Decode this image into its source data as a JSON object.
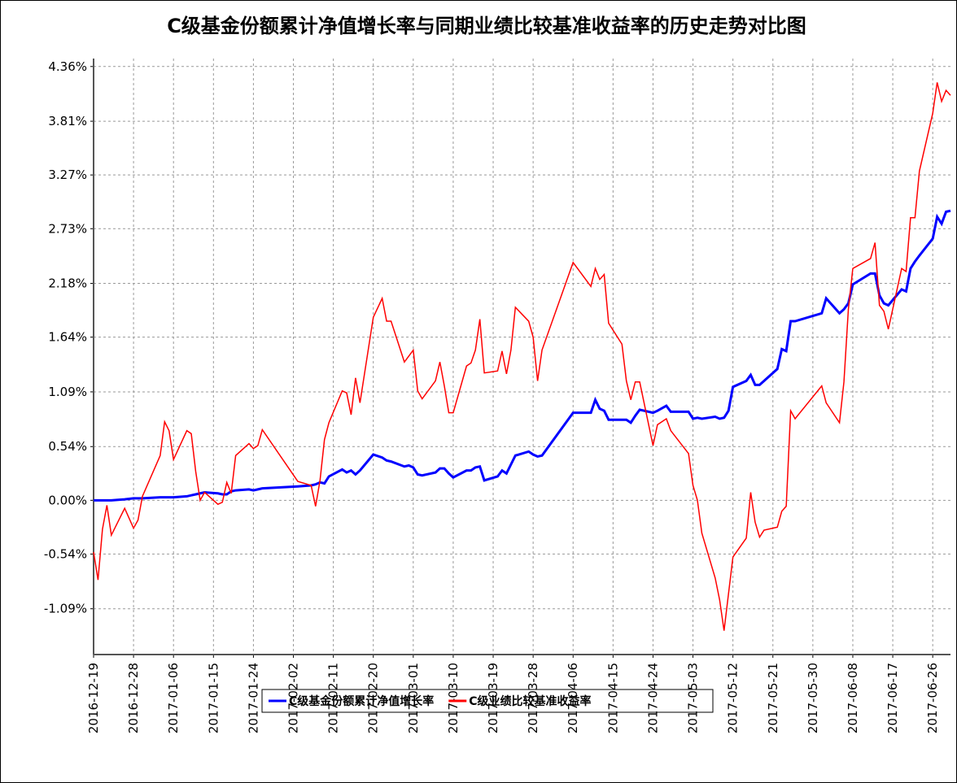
{
  "chart_data": {
    "type": "line",
    "title": "C级基金份额累计净值增长率与同期业绩比较基准收益率的历史走势对比图",
    "x": [
      "2016-12-19",
      "2016-12-20",
      "2016-12-21",
      "2016-12-22",
      "2016-12-23",
      "2016-12-26",
      "2016-12-28",
      "2016-12-29",
      "2016-12-30",
      "2017-01-03",
      "2017-01-04",
      "2017-01-05",
      "2017-01-06",
      "2017-01-09",
      "2017-01-10",
      "2017-01-11",
      "2017-01-12",
      "2017-01-13",
      "2017-01-16",
      "2017-01-17",
      "2017-01-18",
      "2017-01-19",
      "2017-01-20",
      "2017-01-23",
      "2017-01-24",
      "2017-01-25",
      "2017-01-26",
      "2017-02-03",
      "2017-02-06",
      "2017-02-07",
      "2017-02-08",
      "2017-02-09",
      "2017-02-10",
      "2017-02-13",
      "2017-02-14",
      "2017-02-15",
      "2017-02-16",
      "2017-02-17",
      "2017-02-20",
      "2017-02-22",
      "2017-02-23",
      "2017-02-24",
      "2017-02-27",
      "2017-02-28",
      "2017-03-01",
      "2017-03-02",
      "2017-03-03",
      "2017-03-06",
      "2017-03-07",
      "2017-03-08",
      "2017-03-09",
      "2017-03-10",
      "2017-03-13",
      "2017-03-14",
      "2017-03-15",
      "2017-03-16",
      "2017-03-17",
      "2017-03-20",
      "2017-03-21",
      "2017-03-22",
      "2017-03-23",
      "2017-03-24",
      "2017-03-27",
      "2017-03-28",
      "2017-03-29",
      "2017-03-30",
      "2017-04-06",
      "2017-04-10",
      "2017-04-11",
      "2017-04-12",
      "2017-04-13",
      "2017-04-14",
      "2017-04-17",
      "2017-04-18",
      "2017-04-19",
      "2017-04-20",
      "2017-04-21",
      "2017-04-24",
      "2017-04-25",
      "2017-04-27",
      "2017-04-28",
      "2017-05-02",
      "2017-05-03",
      "2017-05-04",
      "2017-05-05",
      "2017-05-08",
      "2017-05-09",
      "2017-05-10",
      "2017-05-11",
      "2017-05-12",
      "2017-05-15",
      "2017-05-16",
      "2017-05-17",
      "2017-05-18",
      "2017-05-19",
      "2017-05-22",
      "2017-05-23",
      "2017-05-24",
      "2017-05-25",
      "2017-05-26",
      "2017-06-01",
      "2017-06-02",
      "2017-06-05",
      "2017-06-06",
      "2017-06-07",
      "2017-06-08",
      "2017-06-12",
      "2017-06-13",
      "2017-06-14",
      "2017-06-15",
      "2017-06-16",
      "2017-06-19",
      "2017-06-20",
      "2017-06-21",
      "2017-06-22",
      "2017-06-23",
      "2017-06-26",
      "2017-06-27",
      "2017-06-28",
      "2017-06-29",
      "2017-06-30"
    ],
    "series": [
      {
        "name": "C级基金份额累计净值增长率",
        "color": "#0000ff",
        "width": 3,
        "values": [
          0.0,
          0.0,
          0.0,
          0.0,
          0.0,
          0.01,
          0.02,
          0.02,
          0.02,
          0.03,
          0.03,
          0.03,
          0.03,
          0.04,
          0.05,
          0.06,
          0.07,
          0.08,
          0.07,
          0.06,
          0.06,
          0.09,
          0.1,
          0.11,
          0.1,
          0.11,
          0.12,
          0.14,
          0.15,
          0.16,
          0.18,
          0.17,
          0.24,
          0.31,
          0.28,
          0.3,
          0.26,
          0.3,
          0.46,
          0.43,
          0.4,
          0.39,
          0.34,
          0.35,
          0.33,
          0.26,
          0.25,
          0.28,
          0.32,
          0.32,
          0.27,
          0.23,
          0.3,
          0.3,
          0.33,
          0.34,
          0.2,
          0.24,
          0.3,
          0.27,
          0.36,
          0.45,
          0.49,
          0.46,
          0.44,
          0.45,
          0.88,
          0.88,
          1.01,
          0.92,
          0.9,
          0.81,
          0.81,
          0.81,
          0.78,
          0.85,
          0.91,
          0.88,
          0.9,
          0.95,
          0.89,
          0.89,
          0.82,
          0.83,
          0.82,
          0.84,
          0.82,
          0.83,
          0.9,
          1.14,
          1.2,
          1.26,
          1.16,
          1.16,
          1.2,
          1.32,
          1.52,
          1.5,
          1.8,
          1.8,
          1.88,
          2.03,
          1.88,
          1.92,
          1.98,
          2.17,
          2.28,
          2.28,
          2.06,
          1.98,
          1.96,
          2.12,
          2.1,
          2.33,
          2.4,
          2.46,
          2.63,
          2.85,
          2.78,
          2.9,
          2.91
        ]
      },
      {
        "name": "C级业绩比较基准收益率",
        "color": "#ff0000",
        "width": 1.5,
        "values": [
          -0.52,
          -0.8,
          -0.29,
          -0.05,
          -0.35,
          -0.08,
          -0.28,
          -0.2,
          0.04,
          0.45,
          0.79,
          0.7,
          0.41,
          0.7,
          0.67,
          0.29,
          0.0,
          0.08,
          -0.04,
          -0.02,
          0.18,
          0.07,
          0.45,
          0.57,
          0.52,
          0.55,
          0.71,
          0.19,
          0.15,
          -0.06,
          0.2,
          0.61,
          0.78,
          1.1,
          1.08,
          0.86,
          1.23,
          0.98,
          1.84,
          2.03,
          1.8,
          1.8,
          1.39,
          1.45,
          1.51,
          1.1,
          1.02,
          1.2,
          1.39,
          1.15,
          0.88,
          0.88,
          1.35,
          1.38,
          1.51,
          1.82,
          1.28,
          1.3,
          1.5,
          1.27,
          1.51,
          1.94,
          1.8,
          1.64,
          1.2,
          1.51,
          2.39,
          2.15,
          2.33,
          2.22,
          2.27,
          1.78,
          1.57,
          1.2,
          1.01,
          1.19,
          1.19,
          0.55,
          0.76,
          0.82,
          0.7,
          0.47,
          0.15,
          0.0,
          -0.33,
          -0.78,
          -1.0,
          -1.31,
          -0.94,
          -0.57,
          -0.38,
          0.08,
          -0.22,
          -0.37,
          -0.3,
          -0.27,
          -0.11,
          -0.06,
          0.9,
          0.82,
          1.15,
          0.98,
          0.78,
          1.19,
          1.92,
          2.33,
          2.43,
          2.59,
          1.96,
          1.9,
          1.72,
          2.33,
          2.3,
          2.84,
          2.84,
          3.31,
          3.89,
          4.2,
          4.01,
          4.12,
          4.07
        ]
      }
    ],
    "xlim": [
      "2016-12-19",
      "2017-06-30"
    ],
    "xticks": [
      "2016-12-19",
      "2016-12-28",
      "2017-01-06",
      "2017-01-15",
      "2017-01-24",
      "2017-02-02",
      "2017-02-11",
      "2017-02-20",
      "2017-03-01",
      "2017-03-10",
      "2017-03-19",
      "2017-03-28",
      "2017-04-06",
      "2017-04-15",
      "2017-04-24",
      "2017-05-03",
      "2017-05-12",
      "2017-05-21",
      "2017-05-30",
      "2017-06-08",
      "2017-06-17",
      "2017-06-26"
    ],
    "ylim": [
      -1.55,
      4.44
    ],
    "yticks": [
      {
        "value": -1.09,
        "label": "-1.09%"
      },
      {
        "value": -0.54,
        "label": "-0.54%"
      },
      {
        "value": 0,
        "label": "0.00%"
      },
      {
        "value": 0.54,
        "label": "0.54%"
      },
      {
        "value": 1.09,
        "label": "1.09%"
      },
      {
        "value": 1.64,
        "label": "1.64%"
      },
      {
        "value": 2.18,
        "label": "2.18%"
      },
      {
        "value": 2.73,
        "label": "2.73%"
      },
      {
        "value": 3.27,
        "label": "3.27%"
      },
      {
        "value": 3.81,
        "label": "3.81%"
      },
      {
        "value": 4.36,
        "label": "4.36%"
      }
    ],
    "grid": true
  }
}
